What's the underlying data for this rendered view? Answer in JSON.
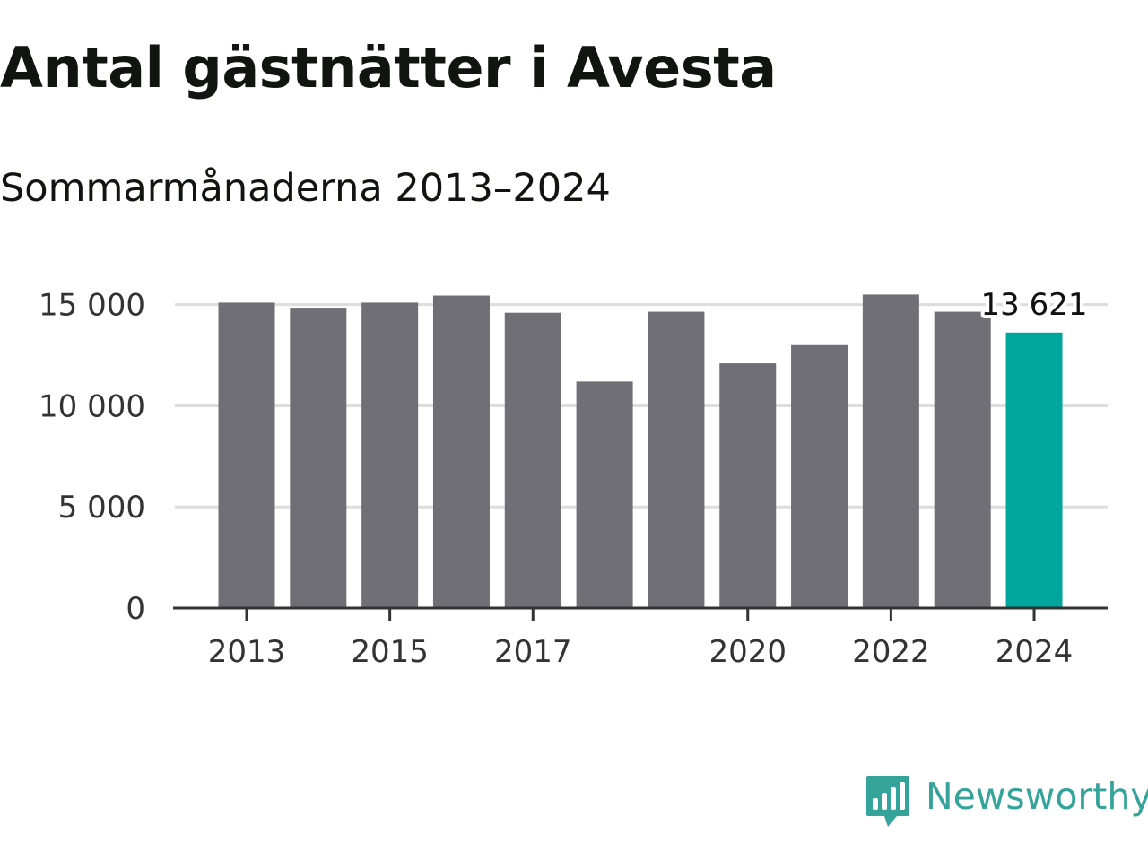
{
  "title": "Antal gästnätter i Avesta",
  "subtitle": "Sommarmånaderna 2013–2024",
  "brand": {
    "name": "Newsworthy",
    "logo_icon": "newsworthy-chart-bubble-icon",
    "color": "#34a39a"
  },
  "colors": {
    "bar": "#706f75",
    "highlight": "#00a69c",
    "grid": "#dddddd",
    "axis": "#333333",
    "tick_text": "#333333"
  },
  "chart_data": {
    "type": "bar",
    "title": "Antal gästnätter i Avesta",
    "subtitle": "Sommarmånaderna 2013–2024",
    "xlabel": "",
    "ylabel": "",
    "categories": [
      "2013",
      "2014",
      "2015",
      "2016",
      "2017",
      "2018",
      "2019",
      "2020",
      "2021",
      "2022",
      "2023",
      "2024"
    ],
    "values": [
      15100,
      14850,
      15100,
      15450,
      14600,
      11200,
      14650,
      12100,
      13000,
      15500,
      14650,
      13621
    ],
    "highlight_index": 11,
    "highlight_label": "13 621",
    "ylim": [
      0,
      15500
    ],
    "yticks": [
      0,
      5000,
      10000,
      15000
    ],
    "ytick_labels": [
      "0",
      "5 000",
      "10 000",
      "15 000"
    ],
    "xtick_labels": [
      "2013",
      "2015",
      "2017",
      "2020",
      "2022",
      "2024"
    ],
    "grid": true,
    "legend": false
  }
}
